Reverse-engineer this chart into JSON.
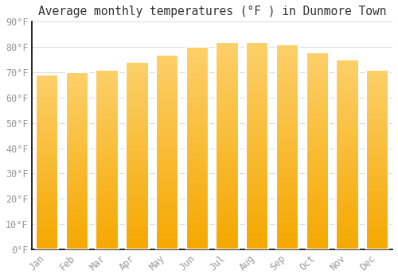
{
  "title": "Average monthly temperatures (°F ) in Dunmore Town",
  "months": [
    "Jan",
    "Feb",
    "Mar",
    "Apr",
    "May",
    "Jun",
    "Jul",
    "Aug",
    "Sep",
    "Oct",
    "Nov",
    "Dec"
  ],
  "values": [
    69,
    70,
    71,
    74,
    77,
    80,
    82,
    82,
    81,
    78,
    75,
    71
  ],
  "bar_color_top": "#FDD06A",
  "bar_color_bottom": "#F5A800",
  "bar_edge_color": "#FFFFFF",
  "background_color": "#FFFFFF",
  "ylim": [
    0,
    90
  ],
  "yticks": [
    0,
    10,
    20,
    30,
    40,
    50,
    60,
    70,
    80,
    90
  ],
  "ytick_labels": [
    "0°F",
    "10°F",
    "20°F",
    "30°F",
    "40°F",
    "50°F",
    "60°F",
    "70°F",
    "80°F",
    "90°F"
  ],
  "title_fontsize": 10.5,
  "tick_fontsize": 8.5,
  "grid_color": "#dddddd",
  "font_family": "monospace",
  "tick_color": "#999999",
  "spine_color": "#000000",
  "bar_width": 0.75
}
